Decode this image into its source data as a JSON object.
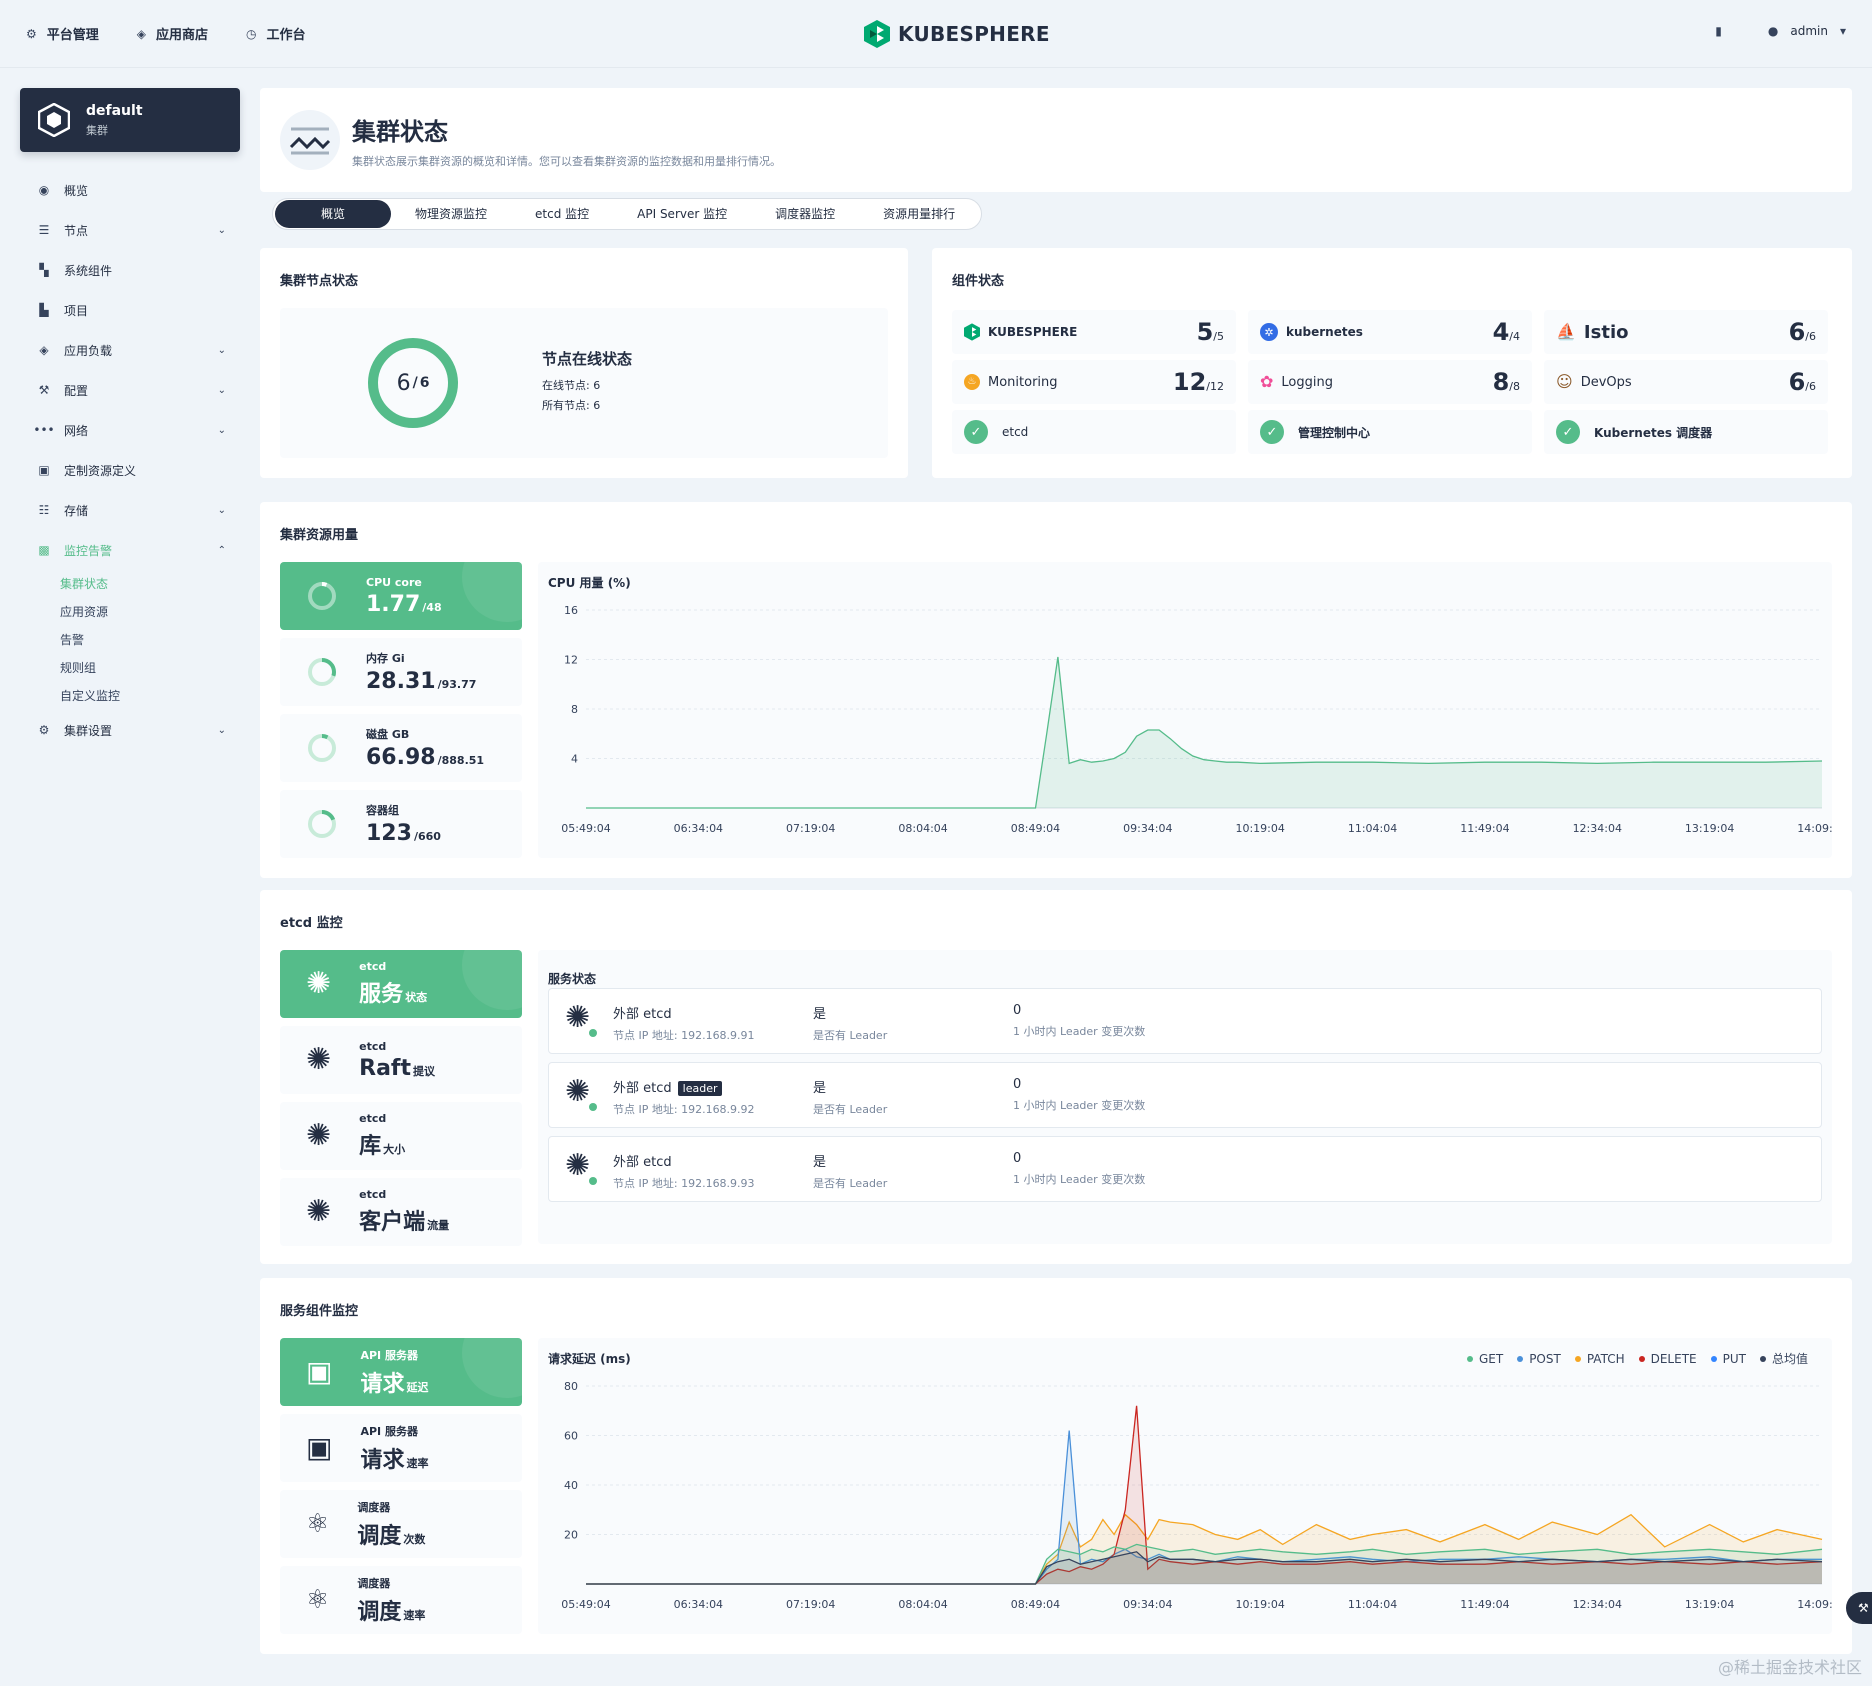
{
  "topbar": {
    "nav": [
      {
        "icon": "gear-icon",
        "label": "平台管理"
      },
      {
        "icon": "layers-icon",
        "label": "应用商店"
      },
      {
        "icon": "clock-icon",
        "label": "工作台"
      }
    ],
    "brand": "KUBESPHERE",
    "user": "admin"
  },
  "sidebar": {
    "cluster_name": "default",
    "cluster_type": "集群",
    "menu": [
      {
        "label": "概览",
        "icon": "dashboard-icon",
        "has_children": false
      },
      {
        "label": "节点",
        "icon": "server-icon",
        "has_children": true
      },
      {
        "label": "系统组件",
        "icon": "components-icon",
        "has_children": false
      },
      {
        "label": "项目",
        "icon": "project-icon",
        "has_children": false
      },
      {
        "label": "应用负载",
        "icon": "appstack-icon",
        "has_children": true
      },
      {
        "label": "配置",
        "icon": "wrench-icon",
        "has_children": true
      },
      {
        "label": "网络",
        "icon": "network-icon",
        "has_children": true
      },
      {
        "label": "定制资源定义",
        "icon": "crd-icon",
        "has_children": false
      },
      {
        "label": "存储",
        "icon": "storage-icon",
        "has_children": true
      }
    ],
    "monitoring": {
      "label": "监控告警",
      "children": [
        "集群状态",
        "应用资源",
        "告警",
        "规则组",
        "自定义监控"
      ]
    },
    "settings": "集群设置"
  },
  "header": {
    "title": "集群状态",
    "description": "集群状态展示集群资源的概览和详情。您可以查看集群资源的监控数据和用量排行情况。"
  },
  "tabs": [
    "概览",
    "物理资源监控",
    "etcd 监控",
    "API Server 监控",
    "调度器监控",
    "资源用量排行"
  ],
  "node_status": {
    "title": "集群节点状态",
    "online": 6,
    "total": 6,
    "online_sep": "/",
    "heading": "节点在线状态",
    "online_label": "在线节点: 6",
    "total_label": "所有节点: 6"
  },
  "components": {
    "title": "组件状态",
    "cells": [
      {
        "name": "KUBESPHERE",
        "count": "5",
        "total": "/5",
        "icon": "kubesphere-icon"
      },
      {
        "name": "kubernetes",
        "count": "4",
        "total": "/4",
        "icon": "kubernetes-icon"
      },
      {
        "name": "Istio",
        "count": "6",
        "total": "/6",
        "icon": "istio-icon"
      },
      {
        "name": "Monitoring",
        "count": "12",
        "total": "/12",
        "icon": "monitoring-icon"
      },
      {
        "name": "Logging",
        "count": "8",
        "total": "/8",
        "icon": "logging-icon"
      },
      {
        "name": "DevOps",
        "count": "6",
        "total": "/6",
        "icon": "devops-icon"
      },
      {
        "name": "etcd",
        "icon": "check-icon"
      },
      {
        "name": "管理控制中心",
        "icon": "check-icon"
      },
      {
        "name": "Kubernetes 调度器",
        "icon": "check-icon"
      }
    ]
  },
  "resource_usage": {
    "title": "集群资源用量",
    "metrics": [
      {
        "label": "CPU core",
        "value": "1.77",
        "total": "/48",
        "ratio": 0.037
      },
      {
        "label": "内存 Gi",
        "value": "28.31",
        "total": "/93.77",
        "ratio": 0.3
      },
      {
        "label": "磁盘 GB",
        "value": "66.98",
        "total": "/888.51",
        "ratio": 0.075
      },
      {
        "label": "容器组",
        "value": "123",
        "total": "/660",
        "ratio": 0.19
      }
    ]
  },
  "cpu_chart": {
    "chart_data": {
      "type": "area",
      "title": "CPU 用量 (%)",
      "y_ticks": [
        16,
        12,
        8,
        4
      ],
      "ylim": [
        0,
        16
      ],
      "x_labels": [
        "05:49:04",
        "06:34:04",
        "07:19:04",
        "08:04:04",
        "08:49:04",
        "09:34:04",
        "10:19:04",
        "11:04:04",
        "11:49:04",
        "12:34:04",
        "13:19:04",
        "14:09:04"
      ],
      "x": [
        0,
        1,
        2,
        3,
        4,
        4.1,
        4.2,
        4.3,
        4.4,
        4.5,
        4.6,
        4.7,
        4.8,
        4.9,
        5,
        5.1,
        5.2,
        5.3,
        5.4,
        5.5,
        5.6,
        5.7,
        5.8,
        6,
        6.5,
        7,
        7.5,
        8,
        8.5,
        9,
        9.5,
        10,
        10.5,
        11
      ],
      "values": [
        0,
        0,
        0,
        0,
        0,
        6,
        12.2,
        3.6,
        3.9,
        3.7,
        3.8,
        4,
        4.5,
        5.8,
        6.3,
        6.3,
        5.6,
        4.8,
        4.2,
        3.9,
        3.8,
        3.7,
        3.7,
        3.6,
        3.7,
        3.7,
        3.6,
        3.7,
        3.7,
        3.6,
        3.7,
        3.7,
        3.7,
        3.8
      ],
      "color": "#55bc8a"
    }
  },
  "etcd": {
    "title": "etcd 监控",
    "metrics": [
      {
        "label": "etcd",
        "value": "服务",
        "suffix": "状态"
      },
      {
        "label": "etcd",
        "value": "Raft",
        "suffix": "提议"
      },
      {
        "label": "etcd",
        "value": "库",
        "suffix": "大小"
      },
      {
        "label": "etcd",
        "value": "客户端",
        "suffix": "流量"
      }
    ],
    "service_title": "服务状态",
    "rows": [
      {
        "name": "外部 etcd",
        "leader_badge": "",
        "ip": "节点 IP 地址: 192.168.9.91",
        "is_leader": "是",
        "is_leader_label": "是否有 Leader",
        "changes": "0",
        "changes_label": "1 小时内 Leader 变更次数"
      },
      {
        "name": "外部 etcd",
        "leader_badge": "leader",
        "ip": "节点 IP 地址: 192.168.9.92",
        "is_leader": "是",
        "is_leader_label": "是否有 Leader",
        "changes": "0",
        "changes_label": "1 小时内 Leader 变更次数"
      },
      {
        "name": "外部 etcd",
        "leader_badge": "",
        "ip": "节点 IP 地址: 192.168.9.93",
        "is_leader": "是",
        "is_leader_label": "是否有 Leader",
        "changes": "0",
        "changes_label": "1 小时内 Leader 变更次数"
      }
    ]
  },
  "service_components": {
    "title": "服务组件监控",
    "metrics": [
      {
        "label": "API 服务器",
        "value": "请求",
        "suffix": "延迟"
      },
      {
        "label": "API 服务器",
        "value": "请求",
        "suffix": "速率"
      },
      {
        "label": "调度器",
        "value": "调度",
        "suffix": "次数"
      },
      {
        "label": "调度器",
        "value": "调度",
        "suffix": "速率"
      }
    ]
  },
  "latency_chart": {
    "chart_data": {
      "type": "area",
      "title": "请求延迟 (ms)",
      "y_ticks": [
        80,
        60,
        40,
        20
      ],
      "ylim": [
        0,
        80
      ],
      "x_labels": [
        "05:49:04",
        "06:34:04",
        "07:19:04",
        "08:04:04",
        "08:49:04",
        "09:34:04",
        "10:19:04",
        "11:04:04",
        "11:49:04",
        "12:34:04",
        "13:19:04",
        "14:09:04"
      ],
      "legend": [
        {
          "name": "GET",
          "color": "#55bc8a"
        },
        {
          "name": "POST",
          "color": "#4a90d9"
        },
        {
          "name": "PATCH",
          "color": "#f5a623"
        },
        {
          "name": "DELETE",
          "color": "#ca2621"
        },
        {
          "name": "PUT",
          "color": "#3385ff"
        },
        {
          "name": "总均值",
          "color": "#36435c"
        }
      ],
      "x": [
        0,
        1,
        2,
        3,
        4,
        4.1,
        4.2,
        4.3,
        4.4,
        4.5,
        4.6,
        4.7,
        4.8,
        4.9,
        5,
        5.1,
        5.2,
        5.4,
        5.6,
        5.8,
        6,
        6.2,
        6.5,
        6.8,
        7,
        7.3,
        7.6,
        8,
        8.3,
        8.6,
        9,
        9.3,
        9.6,
        10,
        10.3,
        10.6,
        11
      ],
      "series": [
        {
          "name": "PATCH",
          "color": "#f5a623",
          "values": [
            0,
            0,
            0,
            0,
            0,
            8,
            12,
            25,
            15,
            18,
            26,
            20,
            28,
            24,
            18,
            26,
            25,
            24,
            20,
            18,
            22,
            16,
            24,
            18,
            20,
            22,
            17,
            24,
            18,
            25,
            20,
            28,
            15,
            24,
            17,
            22,
            18
          ]
        },
        {
          "name": "POST",
          "color": "#4a90d9",
          "values": [
            0,
            0,
            0,
            0,
            0,
            6,
            10,
            62,
            8,
            10,
            9,
            12,
            14,
            11,
            10,
            12,
            10,
            10,
            9,
            11,
            10,
            9,
            10,
            11,
            10,
            9,
            10,
            10,
            11,
            10,
            9,
            10,
            10,
            11,
            9,
            10,
            10
          ]
        },
        {
          "name": "DELETE",
          "color": "#ca2621",
          "values": [
            0,
            0,
            0,
            0,
            0,
            4,
            6,
            5,
            7,
            6,
            8,
            12,
            30,
            72,
            6,
            10,
            9,
            8,
            9,
            8,
            9,
            8,
            8,
            9,
            8,
            9,
            8,
            8,
            9,
            8,
            9,
            8,
            9,
            8,
            9,
            8,
            9
          ]
        },
        {
          "name": "GET",
          "color": "#55bc8a",
          "values": [
            0,
            0,
            0,
            0,
            0,
            10,
            14,
            13,
            12,
            14,
            13,
            15,
            14,
            16,
            15,
            14,
            13,
            14,
            12,
            13,
            14,
            13,
            12,
            13,
            14,
            12,
            13,
            14,
            12,
            13,
            14,
            12,
            13,
            14,
            13,
            12,
            14
          ]
        },
        {
          "name": "总均值",
          "color": "#36435c",
          "values": [
            0,
            0,
            0,
            0,
            0,
            7,
            9,
            10,
            8,
            9,
            10,
            11,
            12,
            13,
            9,
            11,
            10,
            10,
            9,
            10,
            10,
            9,
            9,
            10,
            9,
            10,
            9,
            10,
            9,
            10,
            9,
            10,
            9,
            10,
            9,
            10,
            9
          ]
        }
      ]
    }
  },
  "watermark": "@稀土掘金技术社区"
}
